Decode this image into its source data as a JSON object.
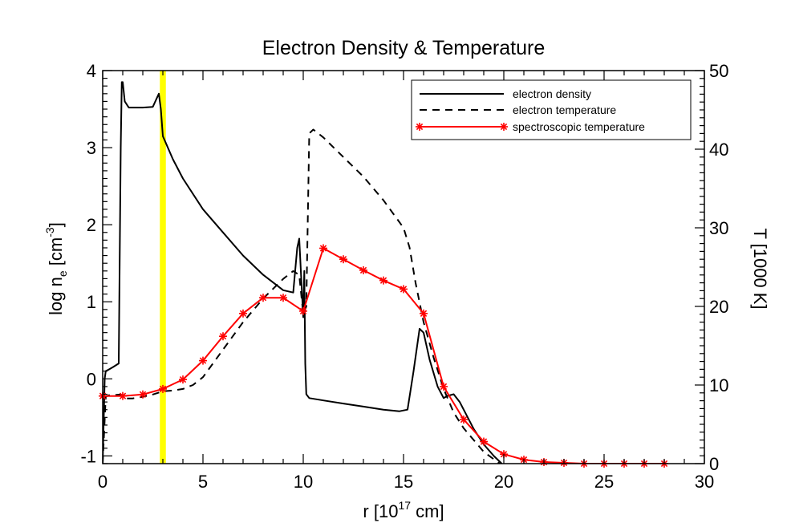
{
  "chart_data": {
    "type": "line",
    "title": "Electron Density & Temperature",
    "xlabel": "r [10",
    "xlabel_sup": "17",
    "xlabel_tail": " cm]",
    "ylabel_left_a": "log n",
    "ylabel_left_sub": "e",
    "ylabel_left_b": " [cm",
    "ylabel_left_sup": "-3",
    "ylabel_left_c": "]",
    "ylabel_right": "T [1000 K]",
    "xlim": [
      0,
      30
    ],
    "ylim_left": [
      -1.1,
      4.0
    ],
    "ylim_right": [
      0,
      50
    ],
    "x_ticks": [
      0,
      5,
      10,
      15,
      20,
      25,
      30
    ],
    "x_tick_labels": [
      "0",
      "5",
      "10",
      "15",
      "20",
      "25",
      "30"
    ],
    "y_left_ticks": [
      -1,
      0,
      1,
      2,
      3,
      4
    ],
    "y_left_tick_labels": [
      "-1",
      "0",
      "1",
      "2",
      "3",
      "4"
    ],
    "y_right_ticks": [
      0,
      10,
      20,
      30,
      40,
      50
    ],
    "y_right_tick_labels": [
      "0",
      "10",
      "20",
      "30",
      "40",
      "50"
    ],
    "legend_position": "top-right",
    "highlight_band": {
      "x_from": 2.85,
      "x_to": 3.15,
      "color": "#ffff00"
    },
    "series": [
      {
        "name": "electron density",
        "axis": "left",
        "style": "solid",
        "color": "#000000",
        "x": [
          0.0,
          0.1,
          0.15,
          0.3,
          0.5,
          0.8,
          0.9,
          0.95,
          1.0,
          1.1,
          1.3,
          1.5,
          2.0,
          2.5,
          2.8,
          2.9,
          3.0,
          3.5,
          4.0,
          5.0,
          6.0,
          7.0,
          8.0,
          9.0,
          9.5,
          9.7,
          9.8,
          9.9,
          10.0,
          10.05,
          10.1,
          10.15,
          10.3,
          11.0,
          12.0,
          13.0,
          14.0,
          14.8,
          15.2,
          15.5,
          15.8,
          16.0,
          16.3,
          16.7,
          17.0,
          17.2,
          17.5,
          17.8,
          18.5,
          19.0,
          19.5,
          19.9
        ],
        "y": [
          -1.1,
          0.0,
          0.1,
          0.12,
          0.15,
          0.2,
          3.0,
          3.85,
          3.85,
          3.6,
          3.52,
          3.52,
          3.52,
          3.53,
          3.7,
          3.5,
          3.15,
          2.85,
          2.6,
          2.2,
          1.9,
          1.6,
          1.35,
          1.15,
          1.12,
          1.7,
          1.82,
          1.3,
          0.8,
          1.4,
          0.2,
          -0.2,
          -0.25,
          -0.28,
          -0.32,
          -0.36,
          -0.4,
          -0.42,
          -0.4,
          0.1,
          0.65,
          0.6,
          0.25,
          -0.1,
          -0.25,
          -0.22,
          -0.2,
          -0.3,
          -0.65,
          -0.85,
          -1.0,
          -1.1
        ]
      },
      {
        "name": "electron temperature",
        "axis": "right",
        "style": "dashed",
        "color": "#000000",
        "x": [
          0.0,
          0.15,
          0.3,
          0.5,
          0.9,
          1.0,
          1.2,
          1.5,
          2.0,
          2.5,
          3.0,
          3.5,
          4.0,
          4.5,
          5.0,
          6.0,
          7.0,
          8.0,
          9.0,
          9.5,
          9.8,
          10.0,
          10.15,
          10.3,
          10.5,
          11.0,
          12.0,
          13.0,
          14.0,
          15.0,
          15.3,
          15.6,
          16.0,
          16.5,
          17.0,
          17.5,
          18.0,
          19.0,
          19.8
        ],
        "y": [
          0.0,
          8.5,
          8.7,
          8.7,
          8.8,
          8.7,
          8.3,
          8.3,
          8.5,
          8.8,
          9.2,
          9.3,
          9.5,
          10.0,
          11.0,
          14.5,
          18.0,
          21.0,
          23.5,
          24.5,
          24.0,
          19.0,
          20.0,
          42.0,
          42.5,
          41.5,
          39.0,
          36.5,
          33.5,
          30.0,
          27.5,
          23.0,
          18.0,
          13.5,
          9.5,
          6.5,
          4.5,
          1.5,
          0.0
        ]
      },
      {
        "name": "spectroscopic temperature",
        "axis": "right",
        "style": "solid-markers",
        "color": "#ff0000",
        "marker": "asterisk",
        "x": [
          0,
          1,
          2,
          3,
          4,
          5,
          6,
          7,
          8,
          9,
          10,
          11,
          12,
          13,
          14,
          15,
          16,
          17,
          18,
          19,
          20,
          21,
          22,
          23,
          24,
          25,
          26,
          27,
          28
        ],
        "y": [
          8.6,
          8.6,
          8.8,
          9.5,
          10.7,
          13.1,
          16.2,
          19.1,
          21.1,
          21.1,
          19.4,
          27.4,
          26.0,
          24.6,
          23.3,
          22.2,
          19.1,
          9.8,
          5.6,
          2.8,
          1.2,
          0.5,
          0.2,
          0.1,
          0.0,
          0.0,
          0.0,
          0.0,
          0.0
        ]
      }
    ]
  }
}
